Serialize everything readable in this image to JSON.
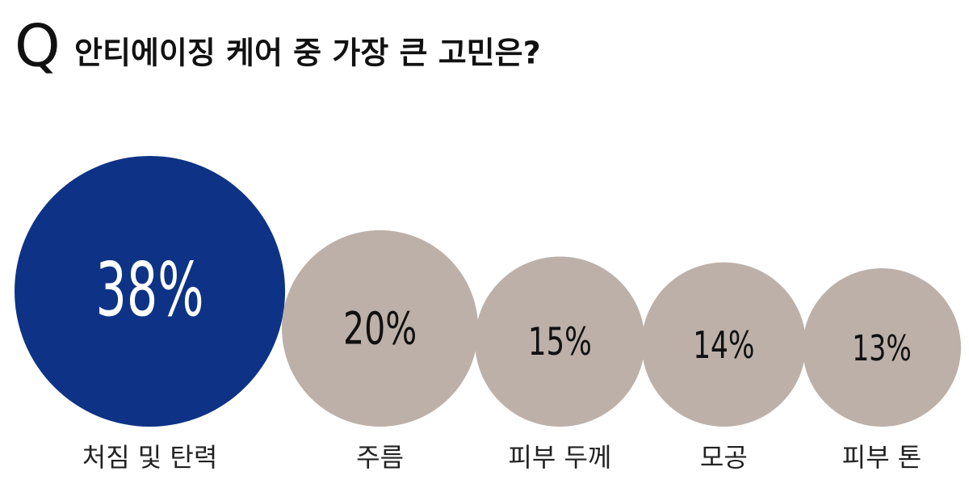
{
  "chart_data": {
    "type": "bubble",
    "prefix": "Q",
    "title": "안티에이징 케어 중 가장 큰 고민은?",
    "categories": [
      "처짐 및 탄력",
      "주름",
      "피부 두께",
      "모공",
      "피부 톤"
    ],
    "values": [
      38,
      20,
      15,
      14,
      13
    ],
    "value_labels": [
      "38%",
      "20%",
      "15%",
      "14%",
      "13%"
    ],
    "colors": [
      "#0e3386",
      "#bcb0a8",
      "#bcb0a8",
      "#bcb0a8",
      "#bcb0a8"
    ],
    "label_colors": [
      "#ffffff",
      "#111111",
      "#111111",
      "#111111",
      "#111111"
    ]
  }
}
